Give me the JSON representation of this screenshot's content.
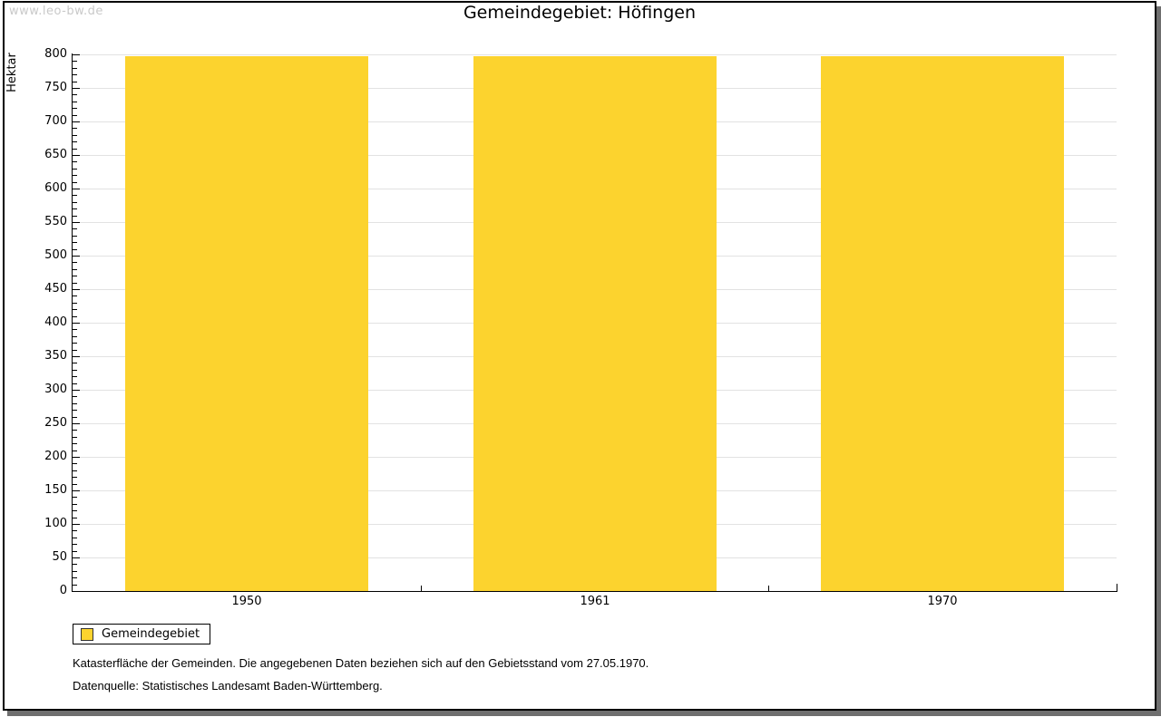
{
  "watermark": "www.leo-bw.de",
  "chart_data": {
    "type": "bar",
    "title": "Gemeindegebiet: Höfingen",
    "categories": [
      "1950",
      "1961",
      "1970"
    ],
    "series": [
      {
        "name": "Gemeindegebiet",
        "values": [
          797,
          797,
          797
        ],
        "color": "#FCD32E"
      }
    ],
    "xlabel": "",
    "ylabel": "Hektar",
    "ylim": [
      0,
      800
    ],
    "y_major_step": 50,
    "y_minor_step": 10,
    "grid": true,
    "gridline_color": "#e2e2e2",
    "legend_position": "bottom-left"
  },
  "legend": {
    "label": "Gemeindegebiet"
  },
  "footnotes": [
    "Katasterfläche der Gemeinden. Die angegebenen Daten beziehen sich auf den Gebietsstand vom 27.05.1970.",
    "Datenquelle: Statistisches Landesamt Baden-Württemberg."
  ]
}
